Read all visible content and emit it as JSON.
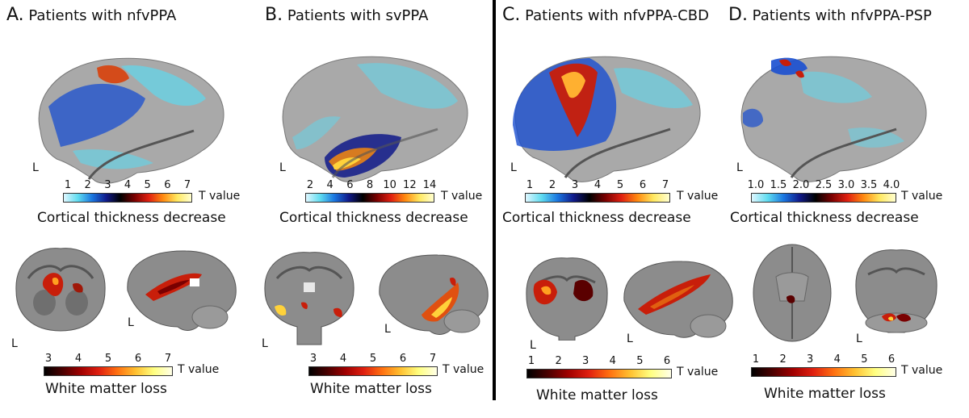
{
  "panels": {
    "a": {
      "letter": "A.",
      "title": "Patients with nfvPPA"
    },
    "b": {
      "letter": "B.",
      "title": "Patients with svPPA"
    },
    "c": {
      "letter": "C.",
      "title": "Patients with nfvPPA-CBD"
    },
    "d": {
      "letter": "D.",
      "title": "Patients with nfvPPA-PSP"
    }
  },
  "hemisphere_label": "L",
  "tvalue_label": "T value",
  "cortical_caption": "Cortical thickness decrease",
  "wm_caption": "White matter loss",
  "scales": {
    "a_ct": [
      "1",
      "2",
      "3",
      "4",
      "5",
      "6",
      "7"
    ],
    "b_ct": [
      "2",
      "4",
      "6",
      "8",
      "10",
      "12",
      "14"
    ],
    "c_ct": [
      "1",
      "2",
      "3",
      "4",
      "5",
      "6",
      "7"
    ],
    "d_ct": [
      "1.0",
      "1.5",
      "2.0",
      "2.5",
      "3.0",
      "3.5",
      "4.0"
    ],
    "a_wm": [
      "3",
      "4",
      "5",
      "6",
      "7"
    ],
    "b_wm": [
      "3",
      "4",
      "5",
      "6",
      "7"
    ],
    "c_wm": [
      "1",
      "2",
      "3",
      "4",
      "5",
      "6"
    ],
    "d_wm": [
      "1",
      "2",
      "3",
      "4",
      "5",
      "6"
    ]
  },
  "colors": {
    "cortex": "#a9a9a9",
    "mri": "#8c8c8c",
    "blue": "#1a4fd0",
    "cyan": "#5fd8ee",
    "red": "#c81e0a",
    "yellow": "#ffd23a"
  }
}
